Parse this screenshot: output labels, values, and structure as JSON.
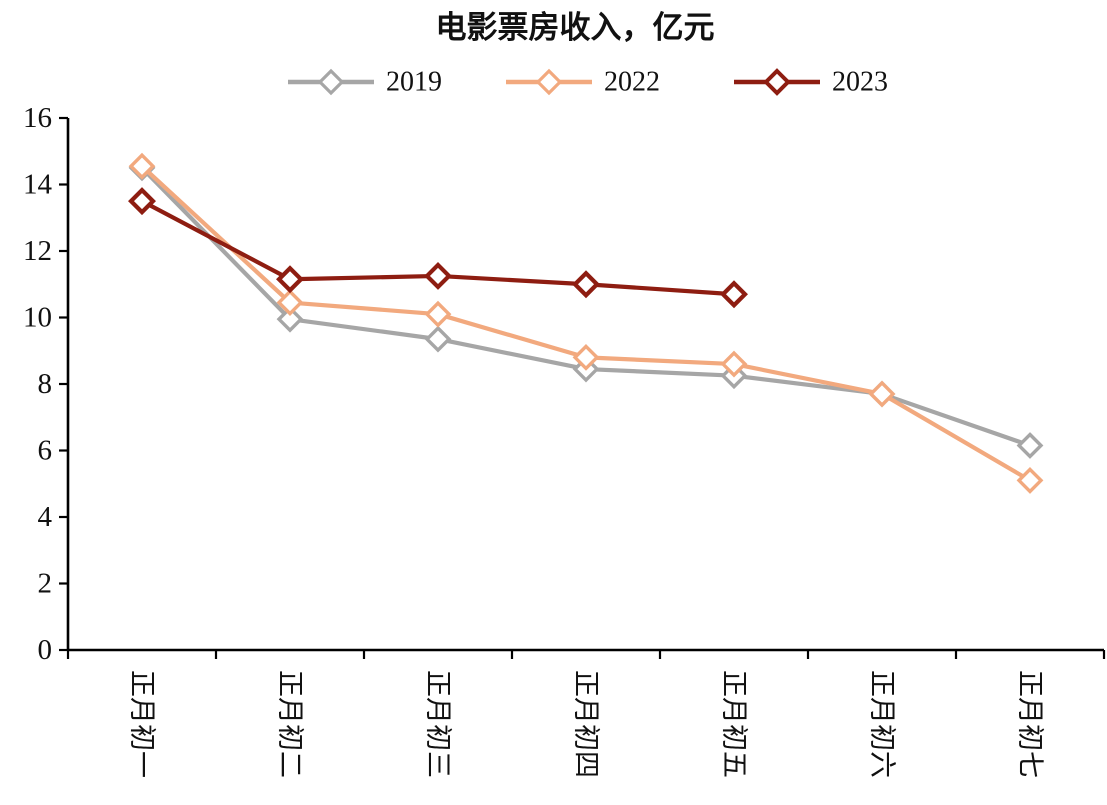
{
  "chart_data": {
    "type": "line",
    "title": "电影票房收入，亿元",
    "xlabel": "",
    "ylabel": "",
    "ylim": [
      0,
      16
    ],
    "ytick_step": 2,
    "grid": false,
    "legend_position": "top",
    "marker": "diamond-hollow",
    "categories": [
      "正月初一",
      "正月初二",
      "正月初三",
      "正月初四",
      "正月初五",
      "正月初六",
      "正月初七"
    ],
    "series": [
      {
        "name": "2019",
        "color": "#a6a6a6",
        "values": [
          14.5,
          9.95,
          9.35,
          8.45,
          8.25,
          7.7,
          6.15
        ]
      },
      {
        "name": "2022",
        "color": "#f2a97e",
        "values": [
          14.55,
          10.45,
          10.1,
          8.8,
          8.6,
          7.7,
          5.1
        ]
      },
      {
        "name": "2023",
        "color": "#8e1d11",
        "values": [
          13.5,
          11.15,
          11.25,
          11.0,
          10.7
        ]
      }
    ],
    "axis_color": "#000000"
  }
}
